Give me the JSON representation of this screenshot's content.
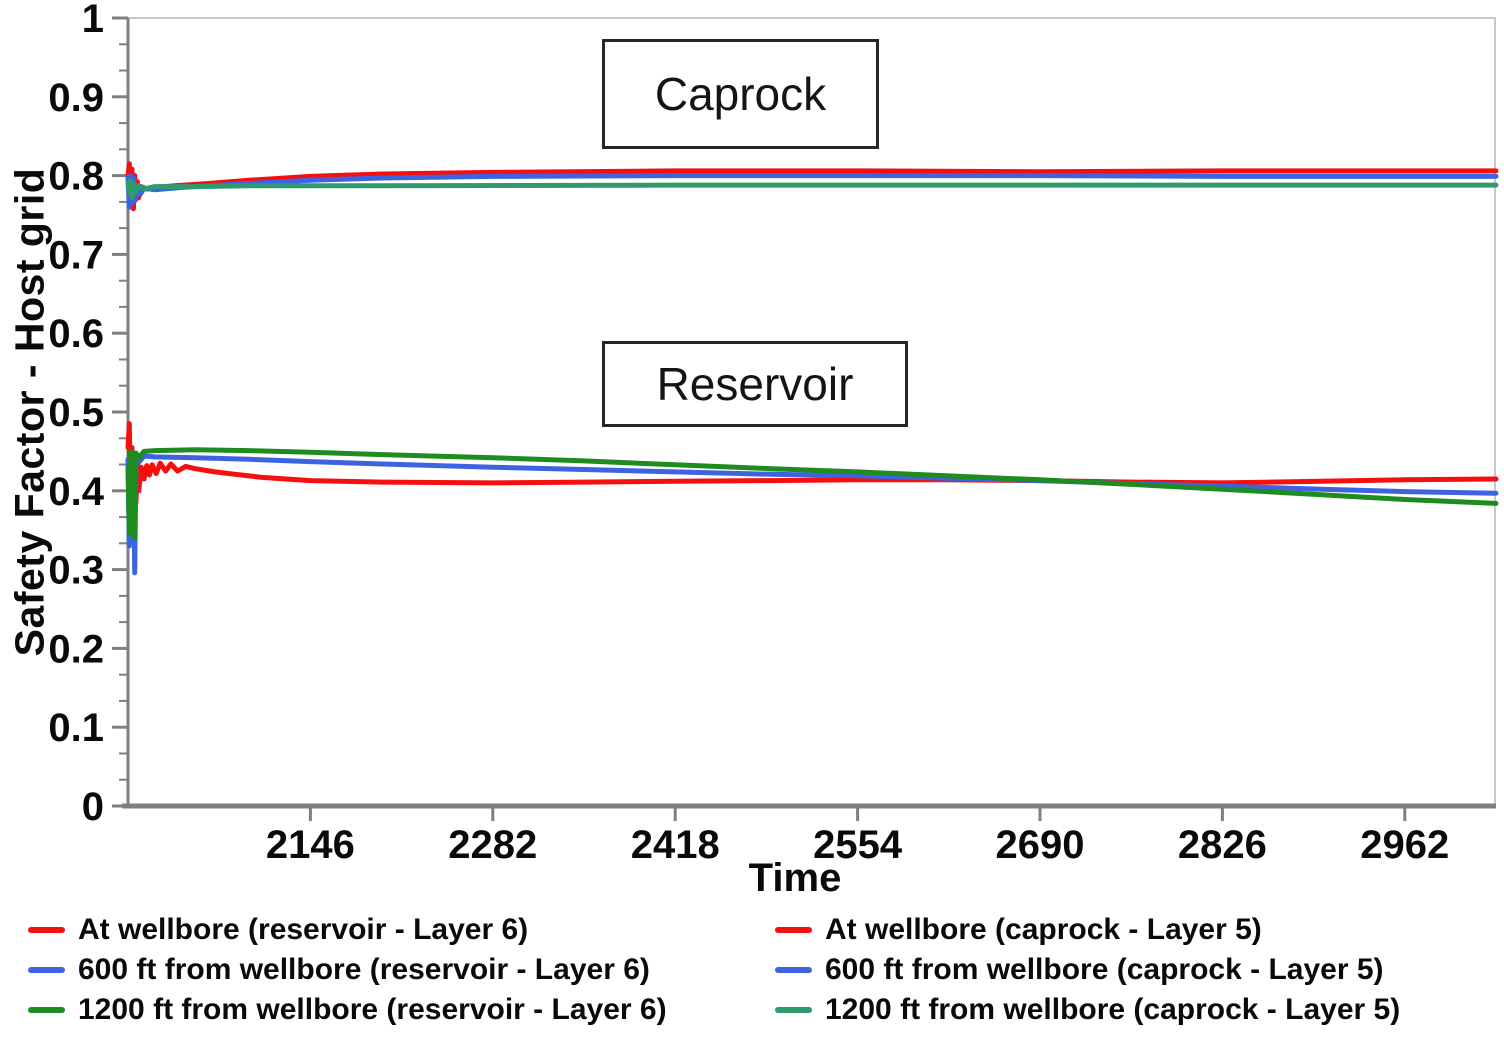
{
  "annotations": [
    {
      "text": "Caprock"
    },
    {
      "text": "Reservoir"
    }
  ],
  "legend": {
    "items": [
      {
        "label": "At wellbore (reservoir - Layer 6)",
        "color": "#f50f0f"
      },
      {
        "label": "600 ft from wellbore (reservoir - Layer 6)",
        "color": "#3e63e0"
      },
      {
        "label": "1200 ft from wellbore (reservoir - Layer 6)",
        "color": "#1e8c1e"
      },
      {
        "label": "At wellbore (caprock - Layer 5)",
        "color": "#f50f0f"
      },
      {
        "label": "600 ft from wellbore (caprock - Layer 5)",
        "color": "#3e63e0"
      },
      {
        "label": "1200 ft from wellbore (caprock - Layer 5)",
        "color": "#2e9b6e"
      }
    ]
  },
  "chart_data": {
    "type": "line",
    "title": "",
    "xlabel": "Time",
    "ylabel": "Safety Factor - Host grid",
    "xlim": [
      2010,
      3030
    ],
    "ylim": [
      0,
      1
    ],
    "x_ticks": [
      2146,
      2282,
      2418,
      2554,
      2690,
      2826,
      2962
    ],
    "y_ticks": [
      0,
      0.1,
      0.2,
      0.3,
      0.4,
      0.5,
      0.6,
      0.7,
      0.8,
      0.9,
      1
    ],
    "y_tick_labels": [
      "0",
      "0.1",
      "0.2",
      "0.3",
      "0.4",
      "0.5",
      "0.6",
      "0.7",
      "0.8",
      "0.9",
      "1"
    ],
    "y_minor_per_major": 3,
    "grid": false,
    "legend_position": "bottom",
    "axis_color": "#7f7f7f",
    "frame_color": "#c8c8c8",
    "series": [
      {
        "id": "caprock-at-wellbore",
        "name": "At wellbore (caprock - Layer 5)",
        "color": "#f50f0f",
        "points": [
          [
            2010,
            0.8
          ],
          [
            2011,
            0.815
          ],
          [
            2012,
            0.762
          ],
          [
            2013,
            0.808
          ],
          [
            2014,
            0.758
          ],
          [
            2015,
            0.8
          ],
          [
            2016,
            0.77
          ],
          [
            2017,
            0.792
          ],
          [
            2018,
            0.772
          ],
          [
            2020,
            0.786
          ],
          [
            2024,
            0.783
          ],
          [
            2030,
            0.785
          ],
          [
            2045,
            0.787
          ],
          [
            2070,
            0.79
          ],
          [
            2100,
            0.794
          ],
          [
            2146,
            0.799
          ],
          [
            2200,
            0.802
          ],
          [
            2282,
            0.804
          ],
          [
            2418,
            0.806
          ],
          [
            2554,
            0.806
          ],
          [
            2690,
            0.805
          ],
          [
            2826,
            0.806
          ],
          [
            2962,
            0.806
          ],
          [
            3030,
            0.806
          ]
        ]
      },
      {
        "id": "caprock-600ft",
        "name": "600 ft from wellbore (caprock - Layer 5)",
        "color": "#3e63e0",
        "points": [
          [
            2010,
            0.798
          ],
          [
            2011,
            0.76
          ],
          [
            2012,
            0.8
          ],
          [
            2013,
            0.765
          ],
          [
            2014,
            0.797
          ],
          [
            2015,
            0.768
          ],
          [
            2017,
            0.788
          ],
          [
            2019,
            0.776
          ],
          [
            2022,
            0.784
          ],
          [
            2030,
            0.782
          ],
          [
            2050,
            0.785
          ],
          [
            2100,
            0.79
          ],
          [
            2146,
            0.794
          ],
          [
            2200,
            0.797
          ],
          [
            2282,
            0.799
          ],
          [
            2418,
            0.8
          ],
          [
            2554,
            0.8
          ],
          [
            2690,
            0.8
          ],
          [
            2826,
            0.799
          ],
          [
            2962,
            0.799
          ],
          [
            3030,
            0.799
          ]
        ]
      },
      {
        "id": "caprock-1200ft",
        "name": "1200 ft from wellbore (caprock - Layer 5)",
        "color": "#2e9b6e",
        "points": [
          [
            2010,
            0.79
          ],
          [
            2011,
            0.778
          ],
          [
            2012,
            0.794
          ],
          [
            2013,
            0.772
          ],
          [
            2014,
            0.79
          ],
          [
            2016,
            0.779
          ],
          [
            2018,
            0.787
          ],
          [
            2022,
            0.783
          ],
          [
            2030,
            0.786
          ],
          [
            2060,
            0.786
          ],
          [
            2100,
            0.787
          ],
          [
            2200,
            0.787
          ],
          [
            2418,
            0.788
          ],
          [
            2690,
            0.788
          ],
          [
            3030,
            0.788
          ]
        ]
      },
      {
        "id": "reservoir-at-wellbore",
        "name": "At wellbore (reservoir - Layer 6)",
        "color": "#f50f0f",
        "points": [
          [
            2010,
            0.455
          ],
          [
            2011,
            0.485
          ],
          [
            2012,
            0.37
          ],
          [
            2013,
            0.455
          ],
          [
            2014,
            0.36
          ],
          [
            2015,
            0.44
          ],
          [
            2016,
            0.385
          ],
          [
            2017,
            0.445
          ],
          [
            2018,
            0.4
          ],
          [
            2020,
            0.43
          ],
          [
            2022,
            0.415
          ],
          [
            2024,
            0.432
          ],
          [
            2026,
            0.42
          ],
          [
            2028,
            0.433
          ],
          [
            2031,
            0.422
          ],
          [
            2034,
            0.435
          ],
          [
            2038,
            0.425
          ],
          [
            2042,
            0.434
          ],
          [
            2047,
            0.425
          ],
          [
            2053,
            0.431
          ],
          [
            2060,
            0.428
          ],
          [
            2075,
            0.424
          ],
          [
            2090,
            0.421
          ],
          [
            2110,
            0.417
          ],
          [
            2146,
            0.413
          ],
          [
            2200,
            0.411
          ],
          [
            2282,
            0.41
          ],
          [
            2350,
            0.411
          ],
          [
            2418,
            0.412
          ],
          [
            2490,
            0.413
          ],
          [
            2554,
            0.414
          ],
          [
            2620,
            0.414
          ],
          [
            2690,
            0.413
          ],
          [
            2760,
            0.411
          ],
          [
            2826,
            0.41
          ],
          [
            2900,
            0.412
          ],
          [
            2962,
            0.414
          ],
          [
            3030,
            0.415
          ]
        ]
      },
      {
        "id": "reservoir-600ft",
        "name": "600 ft from wellbore (reservoir - Layer 6)",
        "color": "#3e63e0",
        "points": [
          [
            2010,
            0.44
          ],
          [
            2011,
            0.33
          ],
          [
            2012,
            0.445
          ],
          [
            2013,
            0.34
          ],
          [
            2014,
            0.448
          ],
          [
            2015,
            0.296
          ],
          [
            2016,
            0.44
          ],
          [
            2018,
            0.436
          ],
          [
            2022,
            0.444
          ],
          [
            2030,
            0.443
          ],
          [
            2060,
            0.442
          ],
          [
            2100,
            0.44
          ],
          [
            2146,
            0.437
          ],
          [
            2200,
            0.434
          ],
          [
            2282,
            0.43
          ],
          [
            2350,
            0.427
          ],
          [
            2418,
            0.424
          ],
          [
            2490,
            0.421
          ],
          [
            2554,
            0.419
          ],
          [
            2620,
            0.416
          ],
          [
            2690,
            0.413
          ],
          [
            2760,
            0.409
          ],
          [
            2826,
            0.406
          ],
          [
            2900,
            0.402
          ],
          [
            2962,
            0.399
          ],
          [
            3030,
            0.397
          ]
        ]
      },
      {
        "id": "reservoir-1200ft",
        "name": "1200 ft from wellbore (reservoir - Layer 6)",
        "color": "#1e8c1e",
        "points": [
          [
            2010,
            0.43
          ],
          [
            2011,
            0.345
          ],
          [
            2012,
            0.45
          ],
          [
            2013,
            0.35
          ],
          [
            2014,
            0.445
          ],
          [
            2015,
            0.34
          ],
          [
            2016,
            0.448
          ],
          [
            2018,
            0.442
          ],
          [
            2022,
            0.45
          ],
          [
            2030,
            0.451
          ],
          [
            2060,
            0.452
          ],
          [
            2100,
            0.451
          ],
          [
            2146,
            0.449
          ],
          [
            2200,
            0.446
          ],
          [
            2282,
            0.442
          ],
          [
            2350,
            0.438
          ],
          [
            2418,
            0.433
          ],
          [
            2490,
            0.428
          ],
          [
            2554,
            0.424
          ],
          [
            2620,
            0.419
          ],
          [
            2690,
            0.414
          ],
          [
            2760,
            0.408
          ],
          [
            2826,
            0.402
          ],
          [
            2900,
            0.395
          ],
          [
            2962,
            0.389
          ],
          [
            3030,
            0.384
          ]
        ]
      }
    ]
  }
}
